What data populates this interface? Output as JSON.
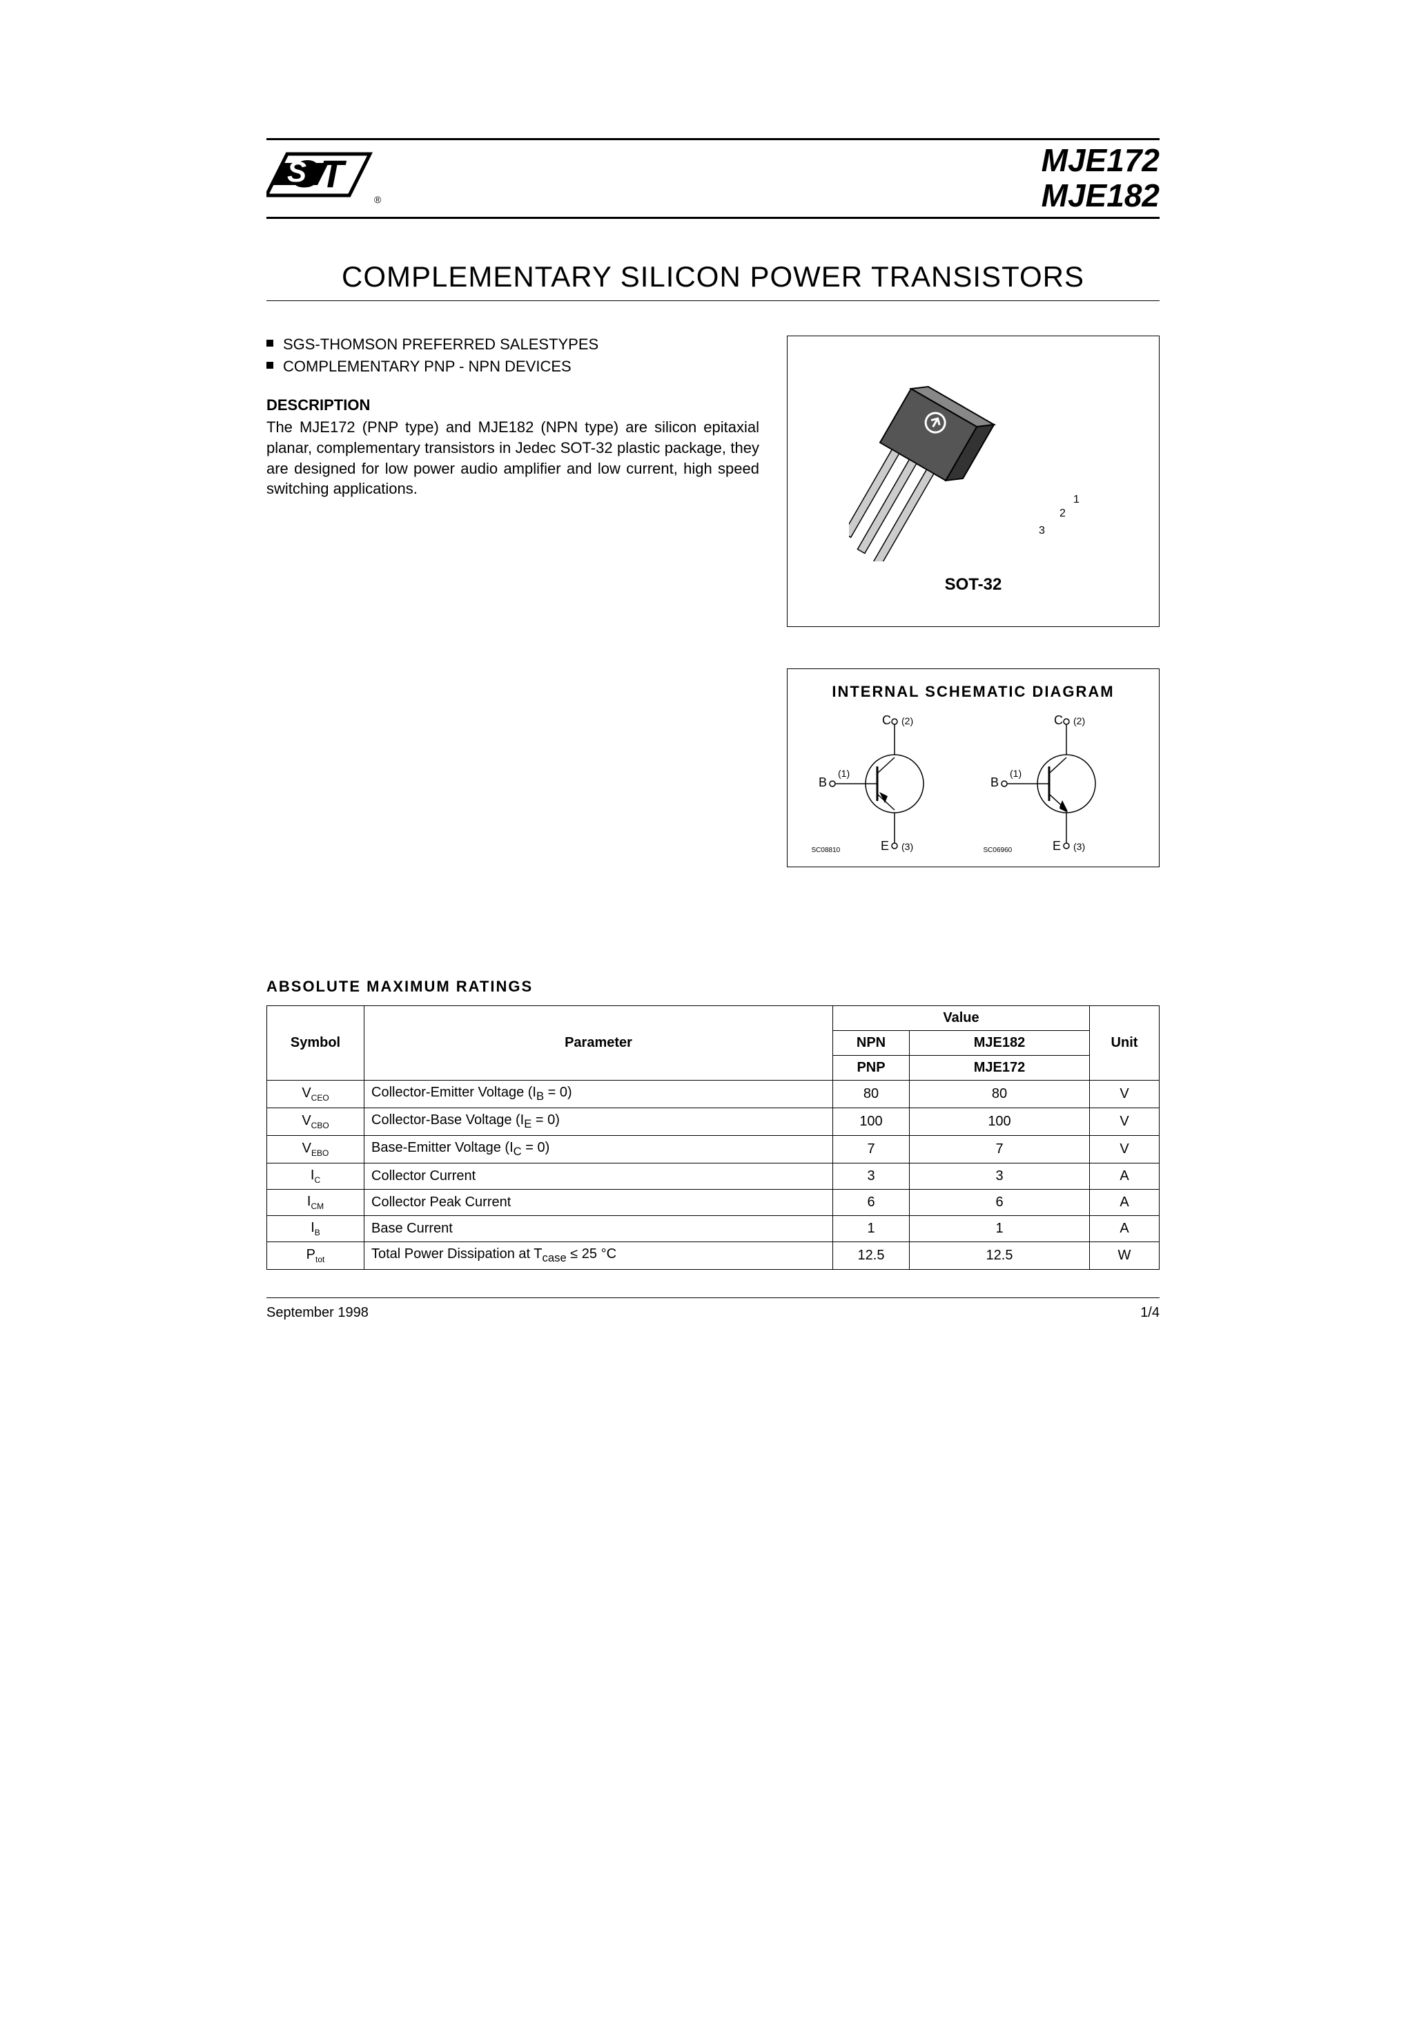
{
  "header": {
    "part1": "MJE172",
    "part2": "MJE182",
    "logo_reg": "®"
  },
  "title": "COMPLEMENTARY SILICON POWER TRANSISTORS",
  "bullets": [
    "SGS-THOMSON PREFERRED SALESTYPES",
    "COMPLEMENTARY PNP - NPN DEVICES"
  ],
  "description": {
    "heading": "DESCRIPTION",
    "text": "The MJE172 (PNP type) and MJE182 (NPN type) are silicon epitaxial planar, complementary transistors in Jedec SOT-32 plastic package, they are designed for low power audio amplifier and low current, high speed switching applications."
  },
  "package": {
    "label": "SOT-32",
    "pin1": "1",
    "pin2": "2",
    "pin3": "3"
  },
  "schematic": {
    "title": "INTERNAL  SCHEMATIC  DIAGRAM",
    "left_code": "SC08810",
    "right_code": "SC06960",
    "B": "B",
    "C": "C",
    "E": "E",
    "p1": "(1)",
    "p2": "(2)",
    "p3": "(3)"
  },
  "ratings": {
    "heading": "ABSOLUTE  MAXIMUM  RATINGS",
    "headers": {
      "symbol": "Symbol",
      "parameter": "Parameter",
      "value": "Value",
      "unit": "Unit"
    },
    "type_rows": {
      "npn_label": "NPN",
      "npn_val": "MJE182",
      "pnp_label": "PNP",
      "pnp_val": "MJE172"
    },
    "rows": [
      {
        "sym": "V",
        "sub": "CEO",
        "param": "Collector-Emitter Voltage (I",
        "psub": "B",
        "ptail": " = 0)",
        "v1": "80",
        "v2": "80",
        "unit": "V"
      },
      {
        "sym": "V",
        "sub": "CBO",
        "param": "Collector-Base Voltage (I",
        "psub": "E",
        "ptail": " = 0)",
        "v1": "100",
        "v2": "100",
        "unit": "V"
      },
      {
        "sym": "V",
        "sub": "EBO",
        "param": "Base-Emitter Voltage (I",
        "psub": "C",
        "ptail": " = 0)",
        "v1": "7",
        "v2": "7",
        "unit": "V"
      },
      {
        "sym": "I",
        "sub": "C",
        "param": "Collector Current",
        "psub": "",
        "ptail": "",
        "v1": "3",
        "v2": "3",
        "unit": "A"
      },
      {
        "sym": "I",
        "sub": "CM",
        "param": "Collector Peak Current",
        "psub": "",
        "ptail": "",
        "v1": "6",
        "v2": "6",
        "unit": "A"
      },
      {
        "sym": "I",
        "sub": "B",
        "param": "Base Current",
        "psub": "",
        "ptail": "",
        "v1": "1",
        "v2": "1",
        "unit": "A"
      },
      {
        "sym": "P",
        "sub": "tot",
        "param": "Total Power Dissipation at T",
        "psub": "case",
        "ptail": "  ≤ 25 °C",
        "v1": "12.5",
        "v2": "12.5",
        "unit": "W"
      }
    ]
  },
  "footer": {
    "date": "September 1998",
    "page": "1/4"
  },
  "colors": {
    "text": "#000000",
    "bg": "#ffffff"
  }
}
